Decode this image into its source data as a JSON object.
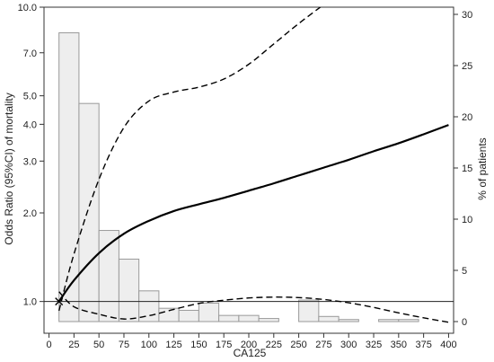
{
  "chart_data": {
    "type": "bar+line",
    "xlabel": "CA125",
    "ylabel_left": "Odds Ratio (95%CI) of mortality",
    "ylabel_right": "% of patients",
    "x_ticks": [
      0,
      25,
      50,
      75,
      100,
      125,
      150,
      175,
      200,
      225,
      250,
      275,
      300,
      325,
      350,
      375,
      400
    ],
    "xlim": [
      -5,
      405
    ],
    "y_left_scale": "log",
    "y_left_ticks": [
      1.0,
      2.0,
      3.0,
      4.0,
      5.0,
      7.0,
      10.0
    ],
    "y_left_tick_labels": [
      "1.0",
      "2.0",
      "3.0",
      "4.0",
      "5.0",
      "7.0",
      "10.0"
    ],
    "y_left_range": [
      0.78,
      10.0
    ],
    "y_right_ticks": [
      0,
      5,
      10,
      15,
      20,
      25,
      30
    ],
    "y_right_range": [
      0,
      30
    ],
    "histogram": {
      "bin_width": 20,
      "bin_left_edges": [
        10,
        30,
        50,
        70,
        90,
        110,
        130,
        150,
        170,
        190,
        210,
        230,
        250,
        270,
        290,
        310,
        330,
        350,
        370,
        390
      ],
      "percent": [
        28.2,
        21.3,
        8.9,
        6.1,
        3.0,
        1.3,
        1.1,
        1.8,
        0.6,
        0.6,
        0.3,
        0.0,
        2.1,
        0.5,
        0.2,
        0.0,
        0.2,
        0.2,
        0.0,
        0.0
      ],
      "fill": "#eeeeee",
      "stroke": "#9a9a9a"
    },
    "reference_line": {
      "y": 1.0
    },
    "series": [
      {
        "style": "solid",
        "x": [
          10,
          25,
          50,
          75,
          100,
          125,
          150,
          175,
          200,
          225,
          250,
          275,
          300,
          325,
          350,
          375,
          400
        ],
        "y": [
          1.0,
          1.18,
          1.46,
          1.7,
          1.88,
          2.03,
          2.14,
          2.25,
          2.38,
          2.52,
          2.68,
          2.85,
          3.03,
          3.24,
          3.45,
          3.7,
          3.98
        ]
      },
      {
        "style": "dashed",
        "x": [
          10,
          25,
          50,
          75,
          100,
          125,
          150,
          175,
          200,
          225,
          250,
          275,
          285
        ],
        "y": [
          0.93,
          1.45,
          2.6,
          3.9,
          4.8,
          5.15,
          5.35,
          5.7,
          6.4,
          7.5,
          8.8,
          10.2,
          10.8
        ]
      },
      {
        "style": "dashed",
        "x": [
          10,
          25,
          50,
          75,
          100,
          125,
          150,
          175,
          200,
          225,
          250,
          275,
          300,
          325,
          350,
          375,
          400
        ],
        "y": [
          1.08,
          0.96,
          0.905,
          0.872,
          0.895,
          0.94,
          0.985,
          1.01,
          1.028,
          1.035,
          1.031,
          1.016,
          0.99,
          0.955,
          0.915,
          0.88,
          0.85
        ]
      }
    ],
    "colors": {
      "line": "#000000",
      "axis": "#333333"
    }
  }
}
